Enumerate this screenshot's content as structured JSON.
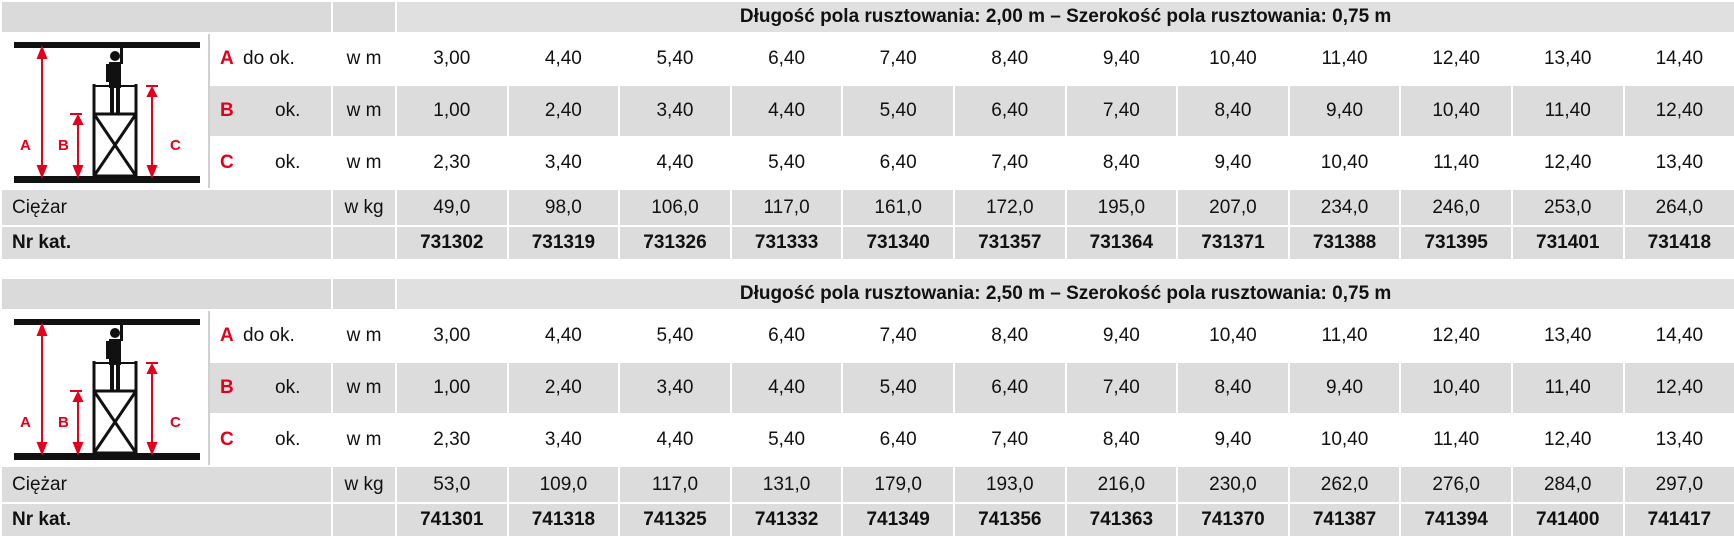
{
  "tables": [
    {
      "title": "Długość pola rusztowania: 2,00 m – Szerokość pola rusztowania: 0,75 m",
      "rows": [
        {
          "letter": "A",
          "suffix": "do ok.",
          "unit": "w m",
          "values": [
            "3,00",
            "4,40",
            "5,40",
            "6,40",
            "7,40",
            "8,40",
            "9,40",
            "10,40",
            "11,40",
            "12,40",
            "13,40",
            "14,40"
          ]
        },
        {
          "letter": "B",
          "suffix": "ok.",
          "unit": "w m",
          "values": [
            "1,00",
            "2,40",
            "3,40",
            "4,40",
            "5,40",
            "6,40",
            "7,40",
            "8,40",
            "9,40",
            "10,40",
            "11,40",
            "12,40"
          ]
        },
        {
          "letter": "C",
          "suffix": "ok.",
          "unit": "w m",
          "values": [
            "2,30",
            "3,40",
            "4,40",
            "5,40",
            "6,40",
            "7,40",
            "8,40",
            "9,40",
            "10,40",
            "11,40",
            "12,40",
            "13,40"
          ]
        }
      ],
      "weight": {
        "label": "Ciężar",
        "unit": "w kg",
        "values": [
          "49,0",
          "98,0",
          "106,0",
          "117,0",
          "161,0",
          "172,0",
          "195,0",
          "207,0",
          "234,0",
          "246,0",
          "253,0",
          "264,0"
        ]
      },
      "catalog": {
        "label": "Nr kat.",
        "values": [
          "731302",
          "731319",
          "731326",
          "731333",
          "731340",
          "731357",
          "731364",
          "731371",
          "731388",
          "731395",
          "731401",
          "731418"
        ]
      }
    },
    {
      "title": "Długość pola rusztowania: 2,50 m – Szerokość pola rusztowania: 0,75 m",
      "rows": [
        {
          "letter": "A",
          "suffix": "do ok.",
          "unit": "w m",
          "values": [
            "3,00",
            "4,40",
            "5,40",
            "6,40",
            "7,40",
            "8,40",
            "9,40",
            "10,40",
            "11,40",
            "12,40",
            "13,40",
            "14,40"
          ]
        },
        {
          "letter": "B",
          "suffix": "ok.",
          "unit": "w m",
          "values": [
            "1,00",
            "2,40",
            "3,40",
            "4,40",
            "5,40",
            "6,40",
            "7,40",
            "8,40",
            "9,40",
            "10,40",
            "11,40",
            "12,40"
          ]
        },
        {
          "letter": "C",
          "suffix": "ok.",
          "unit": "w m",
          "values": [
            "2,30",
            "3,40",
            "4,40",
            "5,40",
            "6,40",
            "7,40",
            "8,40",
            "9,40",
            "10,40",
            "11,40",
            "12,40",
            "13,40"
          ]
        }
      ],
      "weight": {
        "label": "Ciężar",
        "unit": "w kg",
        "values": [
          "53,0",
          "109,0",
          "117,0",
          "131,0",
          "179,0",
          "193,0",
          "216,0",
          "230,0",
          "262,0",
          "276,0",
          "284,0",
          "297,0"
        ]
      },
      "catalog": {
        "label": "Nr kat.",
        "values": [
          "741301",
          "741318",
          "741325",
          "741332",
          "741349",
          "741356",
          "741363",
          "741370",
          "741387",
          "741394",
          "741400",
          "741417"
        ]
      }
    }
  ],
  "diagram": {
    "label_a": "A",
    "label_b": "B",
    "label_c": "C",
    "icon": "scaffold-diagram-icon",
    "accent": "#e3001b"
  }
}
